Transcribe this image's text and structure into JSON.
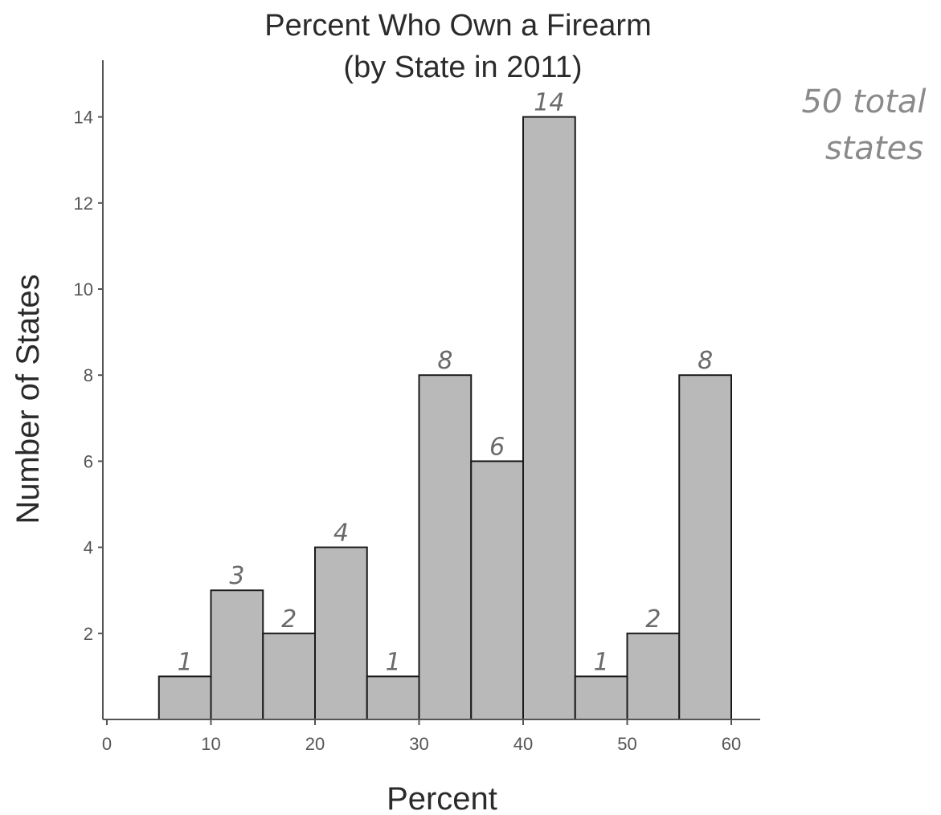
{
  "chart_data": {
    "type": "bar",
    "title": "Percent Who Own a Firearm",
    "subtitle": "(by State in 2011)",
    "xlabel": "Percent",
    "ylabel": "Number of States",
    "bins": [
      {
        "start": 5,
        "end": 10,
        "value": 1,
        "label": "1"
      },
      {
        "start": 10,
        "end": 15,
        "value": 3,
        "label": "3"
      },
      {
        "start": 15,
        "end": 20,
        "value": 2,
        "label": "2"
      },
      {
        "start": 20,
        "end": 25,
        "value": 4,
        "label": "4"
      },
      {
        "start": 25,
        "end": 30,
        "value": 1,
        "label": "1"
      },
      {
        "start": 30,
        "end": 35,
        "value": 8,
        "label": "8"
      },
      {
        "start": 35,
        "end": 40,
        "value": 6,
        "label": "6"
      },
      {
        "start": 40,
        "end": 45,
        "value": 14,
        "label": "14"
      },
      {
        "start": 45,
        "end": 50,
        "value": 1,
        "label": "1"
      },
      {
        "start": 50,
        "end": 55,
        "value": 2,
        "label": "2"
      },
      {
        "start": 55,
        "end": 60,
        "value": 8,
        "label": "8"
      }
    ],
    "x_ticks": [
      "0",
      "10",
      "20",
      "30",
      "40",
      "50",
      "60"
    ],
    "y_ticks": [
      "2",
      "4",
      "6",
      "8",
      "10",
      "12",
      "14"
    ],
    "xlim": [
      0,
      63
    ],
    "ylim": [
      0,
      15
    ],
    "grid": false
  },
  "annotation": {
    "line1": "50 total",
    "line2": "states"
  }
}
